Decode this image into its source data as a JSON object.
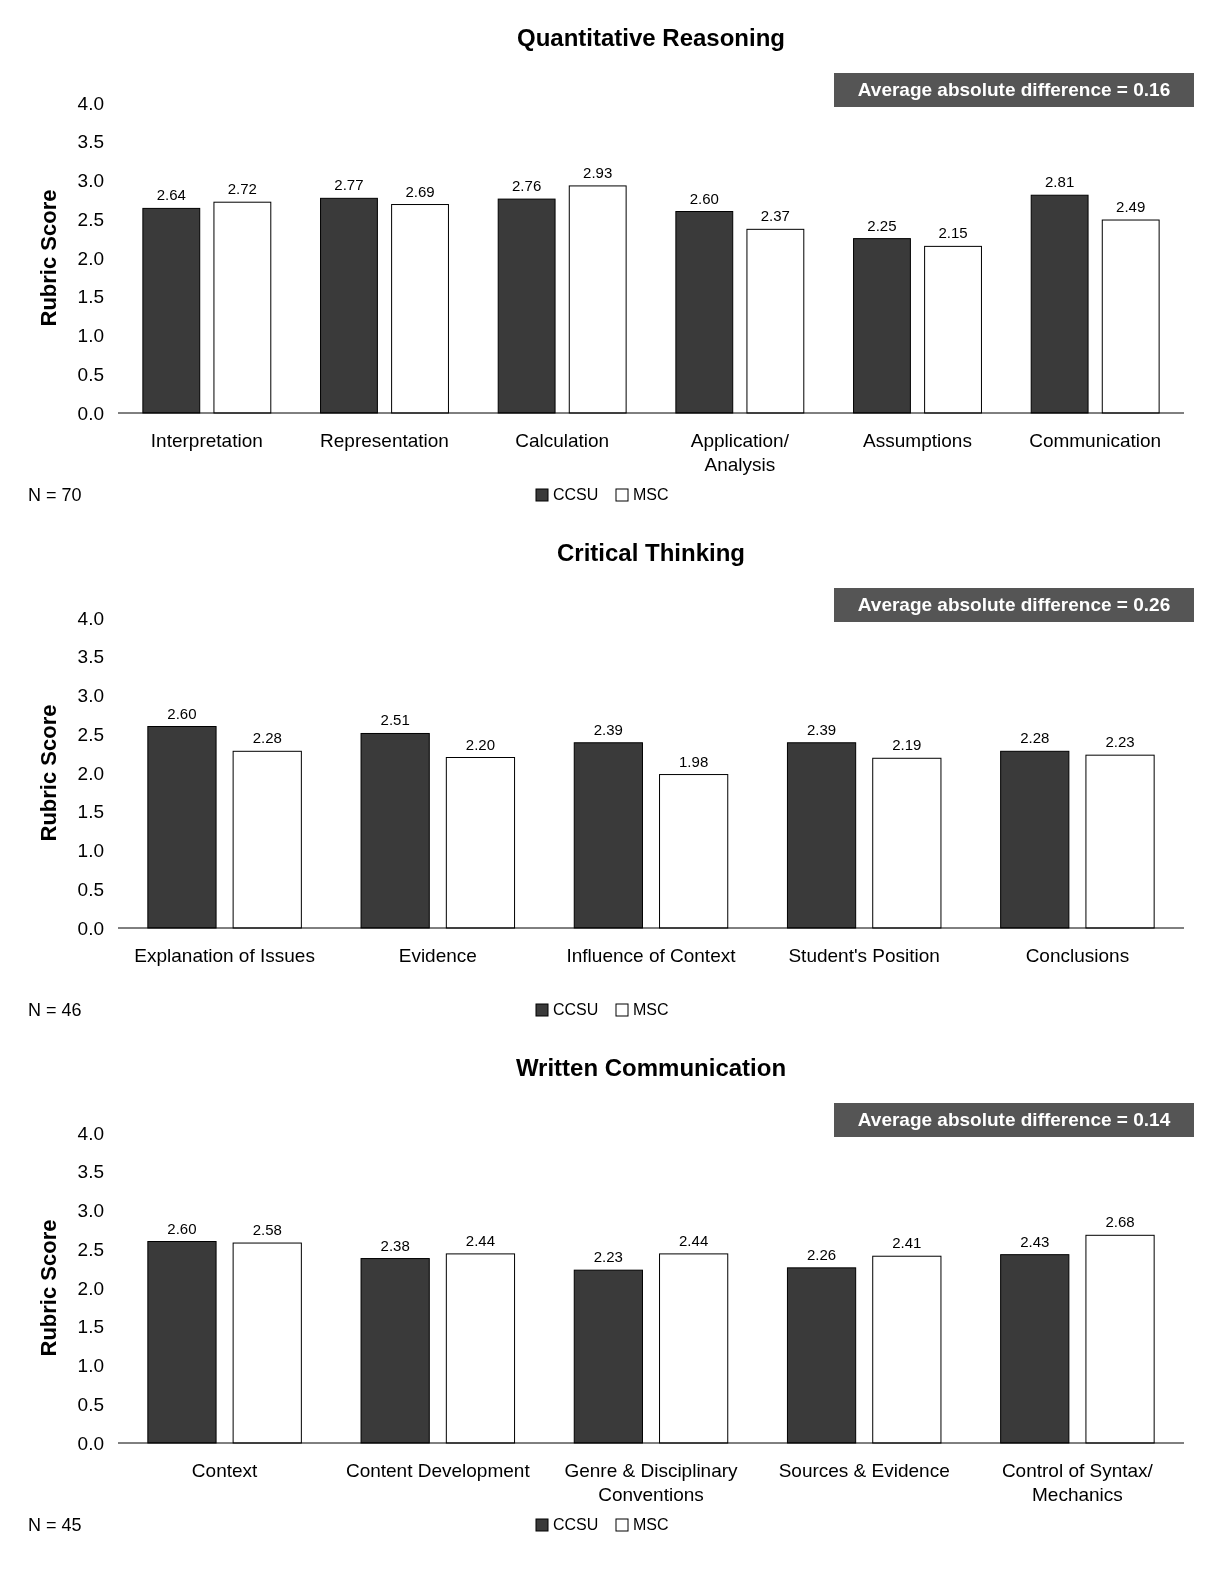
{
  "chart_data": [
    {
      "type": "bar",
      "title": "Quantitative Reasoning",
      "ylabel": "Rubric Score",
      "categories": [
        "Interpretation",
        "Representation",
        "Calculation",
        "Application/ Analysis",
        "Assumptions",
        "Communication"
      ],
      "series": [
        {
          "name": "CCSU",
          "color": "#3a3a3a",
          "values": [
            2.64,
            2.77,
            2.76,
            2.6,
            2.25,
            2.81
          ],
          "value_labels": [
            "2.64",
            "2.77",
            "2.76",
            "2.60",
            "2.25",
            "2.81"
          ]
        },
        {
          "name": "MSC",
          "color": "#ffffff",
          "values": [
            2.72,
            2.69,
            2.93,
            2.37,
            2.15,
            2.49
          ],
          "value_labels": [
            "2.72",
            "2.69",
            "2.93",
            "2.37",
            "2.15",
            "2.49"
          ]
        }
      ],
      "ylim": [
        0,
        4
      ],
      "yticks": [
        {
          "value": 0,
          "label": "0.0"
        },
        {
          "value": 0.5,
          "label": "0.5"
        },
        {
          "value": 1,
          "label": "1.0"
        },
        {
          "value": 1.5,
          "label": "1.5"
        },
        {
          "value": 2,
          "label": "2.0"
        },
        {
          "value": 2.5,
          "label": "2.5"
        },
        {
          "value": 3,
          "label": "3.0"
        },
        {
          "value": 3.5,
          "label": "3.5"
        },
        {
          "value": 4,
          "label": "4.0"
        }
      ],
      "legend": "bottom",
      "annotations": [
        "Average absolute difference = 0.16",
        "N = 70"
      ]
    },
    {
      "type": "bar",
      "title": "Critical Thinking",
      "ylabel": "Rubric Score",
      "categories": [
        "Explanation of Issues",
        "Evidence",
        "Influence of Context",
        "Student's Position",
        "Conclusions"
      ],
      "series": [
        {
          "name": "CCSU",
          "color": "#3a3a3a",
          "values": [
            2.6,
            2.51,
            2.39,
            2.39,
            2.28
          ],
          "value_labels": [
            "2.60",
            "2.51",
            "2.39",
            "2.39",
            "2.28"
          ]
        },
        {
          "name": "MSC",
          "color": "#ffffff",
          "values": [
            2.28,
            2.2,
            1.98,
            2.19,
            2.23
          ],
          "value_labels": [
            "2.28",
            "2.20",
            "1.98",
            "2.19",
            "2.23"
          ]
        }
      ],
      "ylim": [
        0,
        4
      ],
      "yticks": [
        {
          "value": 0,
          "label": "0.0"
        },
        {
          "value": 0.5,
          "label": "0.5"
        },
        {
          "value": 1,
          "label": "1.0"
        },
        {
          "value": 1.5,
          "label": "1.5"
        },
        {
          "value": 2,
          "label": "2.0"
        },
        {
          "value": 2.5,
          "label": "2.5"
        },
        {
          "value": 3,
          "label": "3.0"
        },
        {
          "value": 3.5,
          "label": "3.5"
        },
        {
          "value": 4,
          "label": "4.0"
        }
      ],
      "legend": "bottom",
      "annotations": [
        "Average absolute difference = 0.26",
        "N = 46"
      ]
    },
    {
      "type": "bar",
      "title": "Written Communication",
      "ylabel": "Rubric Score",
      "categories": [
        "Context",
        "Content Development",
        "Genre & Disciplinary Conventions",
        "Sources & Evidence",
        "Control of Syntax/ Mechanics"
      ],
      "series": [
        {
          "name": "CCSU",
          "color": "#3a3a3a",
          "values": [
            2.6,
            2.38,
            2.23,
            2.26,
            2.43
          ],
          "value_labels": [
            "2.60",
            "2.38",
            "2.23",
            "2.26",
            "2.43"
          ]
        },
        {
          "name": "MSC",
          "color": "#ffffff",
          "values": [
            2.58,
            2.44,
            2.44,
            2.41,
            2.68
          ],
          "value_labels": [
            "2.58",
            "2.44",
            "2.44",
            "2.41",
            "2.68"
          ]
        }
      ],
      "ylim": [
        0,
        4
      ],
      "yticks": [
        {
          "value": 0,
          "label": "0.0"
        },
        {
          "value": 0.5,
          "label": "0.5"
        },
        {
          "value": 1,
          "label": "1.0"
        },
        {
          "value": 1.5,
          "label": "1.5"
        },
        {
          "value": 2,
          "label": "2.0"
        },
        {
          "value": 2.5,
          "label": "2.5"
        },
        {
          "value": 3,
          "label": "3.0"
        },
        {
          "value": 3.5,
          "label": "3.5"
        },
        {
          "value": 4,
          "label": "4.0"
        }
      ],
      "legend": "bottom",
      "annotations": [
        "Average absolute difference = 0.14",
        "N = 45"
      ]
    }
  ]
}
